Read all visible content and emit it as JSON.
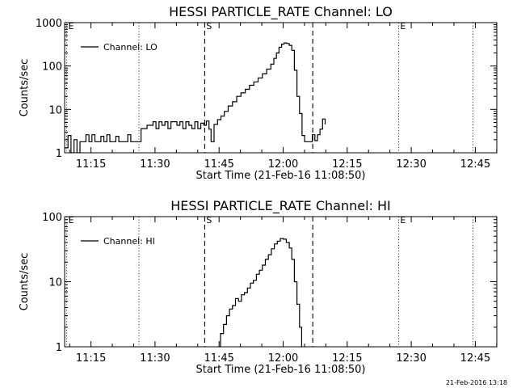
{
  "footer_text": "21-Feb-2016 13:18",
  "chart_data": [
    {
      "type": "line",
      "title": "HESSI PARTICLE_RATE Channel: LO",
      "xlabel": "Start Time (21-Feb-16 11:08:50)",
      "ylabel": "Counts/sec",
      "x_unit": "minutes since 11:08:50",
      "xlim": [
        0,
        101.2
      ],
      "ylim": [
        1,
        1000
      ],
      "yscale": "log",
      "x_tick_positions": [
        6.17,
        21.17,
        36.17,
        51.17,
        66.17,
        81.17,
        96.17
      ],
      "x_tick_labels": [
        "11:15",
        "11:30",
        "11:45",
        "12:00",
        "12:15",
        "12:30",
        "12:45"
      ],
      "y_tick_values": [
        1,
        10,
        100,
        1000
      ],
      "y_tick_labels": [
        "1",
        "10",
        "100",
        "1000"
      ],
      "legend": {
        "label": "Channel: LO",
        "position": "top-left"
      },
      "markers": [
        {
          "x": 0.5,
          "style": "dotted",
          "label": "E"
        },
        {
          "x": 17.4,
          "style": "dotted",
          "label": ""
        },
        {
          "x": 32.8,
          "style": "dashed",
          "label": "S"
        },
        {
          "x": 58.1,
          "style": "dashed",
          "label": ""
        },
        {
          "x": 78.2,
          "style": "dotted",
          "label": "E"
        },
        {
          "x": 95.6,
          "style": "dotted",
          "label": ""
        }
      ],
      "series": [
        {
          "name": "Channel: LO",
          "x": [
            0,
            0.8,
            1.5,
            2.2,
            2.9,
            3.6,
            4.3,
            5.0,
            5.7,
            6.4,
            7.1,
            7.8,
            8.5,
            9.2,
            9.9,
            10.6,
            11.3,
            12.0,
            12.7,
            13.4,
            14.1,
            14.8,
            15.5,
            16.2,
            16.9,
            17.4,
            17.9,
            18.6,
            19.3,
            20.0,
            20.7,
            21.4,
            22.1,
            22.8,
            23.5,
            24.2,
            24.9,
            25.6,
            26.3,
            27.0,
            27.7,
            28.4,
            29.1,
            29.8,
            30.5,
            31.2,
            31.9,
            32.6,
            33.2,
            33.8,
            34.3,
            35.0,
            35.8,
            36.6,
            37.4,
            38.3,
            39.3,
            40.3,
            41.3,
            42.3,
            43.3,
            44.3,
            45.3,
            46.3,
            47.3,
            48.3,
            49.0,
            49.6,
            50.2,
            50.8,
            51.4,
            52.0,
            52.6,
            53.2,
            53.8,
            54.4,
            55.0,
            55.6,
            56.2,
            56.8,
            57.4,
            58.0,
            58.6,
            59.2,
            59.8,
            60.4,
            61.0
          ],
          "values": [
            1.3,
            2.5,
            1.0,
            2.0,
            1.0,
            1.8,
            1.8,
            2.6,
            1.8,
            2.6,
            1.8,
            1.8,
            2.4,
            1.8,
            2.6,
            1.8,
            1.8,
            2.4,
            1.8,
            1.8,
            1.8,
            2.6,
            1.8,
            1.8,
            1.8,
            1.8,
            3.6,
            3.6,
            4.3,
            4.3,
            5.2,
            3.6,
            5.2,
            4.3,
            5.2,
            3.6,
            5.2,
            5.2,
            4.3,
            5.2,
            3.6,
            5.2,
            4.3,
            3.6,
            5.2,
            3.6,
            4.8,
            4.3,
            5.4,
            3.5,
            1.8,
            4.5,
            5.8,
            7.0,
            9.0,
            12,
            15,
            20,
            24,
            29,
            36,
            43,
            53,
            66,
            85,
            110,
            150,
            200,
            270,
            320,
            340,
            330,
            300,
            230,
            80,
            20,
            8,
            2.5,
            1.8,
            1.8,
            1.8,
            2.6,
            1.9,
            2.6,
            3.5,
            6.0,
            4.5
          ]
        }
      ]
    },
    {
      "type": "line",
      "title": "HESSI PARTICLE_RATE Channel: HI",
      "xlabel": "Start Time (21-Feb-16 11:08:50)",
      "ylabel": "Counts/sec",
      "x_unit": "minutes since 11:08:50",
      "xlim": [
        0,
        101.2
      ],
      "ylim": [
        1,
        100
      ],
      "yscale": "log",
      "x_tick_positions": [
        6.17,
        21.17,
        36.17,
        51.17,
        66.17,
        81.17,
        96.17
      ],
      "x_tick_labels": [
        "11:15",
        "11:30",
        "11:45",
        "12:00",
        "12:15",
        "12:30",
        "12:45"
      ],
      "y_tick_values": [
        1,
        10,
        100
      ],
      "y_tick_labels": [
        "1",
        "10",
        "100"
      ],
      "legend": {
        "label": "Channel: HI",
        "position": "top-left"
      },
      "markers": [
        {
          "x": 0.5,
          "style": "dotted",
          "label": "E"
        },
        {
          "x": 17.4,
          "style": "dotted",
          "label": ""
        },
        {
          "x": 32.8,
          "style": "dashed",
          "label": "S"
        },
        {
          "x": 58.1,
          "style": "dashed",
          "label": ""
        },
        {
          "x": 78.2,
          "style": "dotted",
          "label": "E"
        },
        {
          "x": 95.6,
          "style": "dotted",
          "label": ""
        }
      ],
      "series": [
        {
          "name": "Channel: HI",
          "x": [
            35.8,
            36.5,
            37.2,
            37.9,
            38.6,
            39.3,
            40.0,
            40.7,
            41.4,
            42.1,
            42.8,
            43.5,
            44.2,
            44.9,
            45.6,
            46.3,
            47.0,
            47.7,
            48.4,
            49.1,
            49.8,
            50.5,
            51.2,
            51.9,
            52.6,
            53.2,
            53.8,
            54.4,
            55.0,
            55.5
          ],
          "values": [
            1.0,
            1.6,
            2.2,
            3.0,
            3.8,
            4.3,
            5.5,
            5.0,
            6.3,
            6.8,
            8.0,
            9.5,
            10.5,
            13,
            15,
            18,
            22,
            26,
            32,
            38,
            42,
            46,
            45,
            40,
            33,
            22,
            10,
            4.5,
            2.0,
            1.0
          ]
        }
      ]
    }
  ]
}
